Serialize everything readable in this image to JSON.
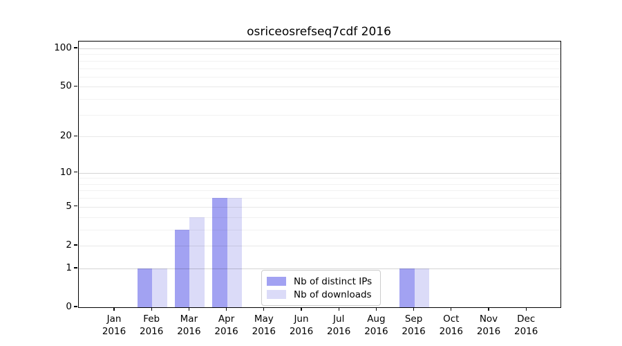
{
  "chart_data": {
    "type": "bar",
    "title": "osriceosrefseq7cdf 2016",
    "categories": [
      "Jan",
      "Feb",
      "Mar",
      "Apr",
      "May",
      "Jun",
      "Jul",
      "Aug",
      "Sep",
      "Oct",
      "Nov",
      "Dec"
    ],
    "category_year": "2016",
    "series": [
      {
        "name": "Nb of distinct IPs",
        "color": "#a2a2f2",
        "values": [
          0,
          1,
          3,
          6,
          0,
          0,
          0,
          0,
          1,
          0,
          0,
          0
        ]
      },
      {
        "name": "Nb of downloads",
        "color": "#dbdbf8",
        "values": [
          0,
          1,
          4,
          6,
          0,
          0,
          0,
          0,
          1,
          0,
          0,
          0
        ]
      }
    ],
    "xlabel": "",
    "ylabel": "",
    "y_axis": {
      "scale": "log1p",
      "ticks": [
        0,
        1,
        2,
        5,
        10,
        20,
        50,
        100
      ],
      "minor_gridlines": [
        3,
        4,
        6,
        7,
        8,
        9,
        30,
        40,
        60,
        70,
        80,
        90
      ],
      "ylim": [
        0,
        113
      ]
    },
    "grid": true,
    "legend": {
      "position": "lower center (inside axes)",
      "entries": [
        "Nb of distinct IPs",
        "Nb of downloads"
      ]
    }
  },
  "colors": {
    "series_dark": "#a2a2f2",
    "series_light": "#dbdbf8",
    "axis": "#000000",
    "legend_border": "#cccccc",
    "background": "#ffffff"
  }
}
